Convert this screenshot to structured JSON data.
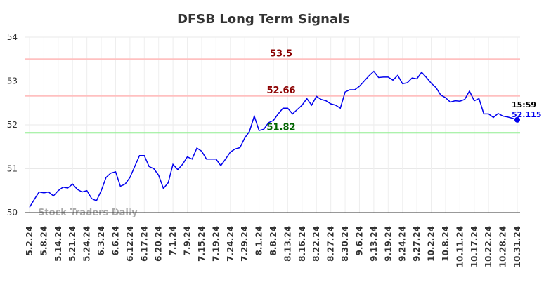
{
  "chart_data": {
    "type": "line",
    "title": "DFSB Long Term Signals",
    "watermark": "Stock Traders Daily",
    "last_time": "15:59",
    "categories": [
      "5.2.24",
      null,
      null,
      "5.8.24",
      null,
      null,
      "5.14.24",
      null,
      null,
      "5.21.24",
      null,
      null,
      "5.24.24",
      null,
      null,
      "6.3.24",
      null,
      null,
      "6.6.24",
      null,
      null,
      "6.12.24",
      null,
      null,
      "6.17.24",
      null,
      null,
      "6.20.24",
      null,
      null,
      "7.1.24",
      null,
      null,
      "7.9.24",
      null,
      null,
      "7.15.24",
      null,
      null,
      "7.19.24",
      null,
      null,
      "7.24.24",
      null,
      null,
      "7.29.24",
      null,
      null,
      "8.1.24",
      null,
      null,
      "8.8.24",
      null,
      null,
      "8.13.24",
      null,
      null,
      "8.16.24",
      null,
      null,
      "8.22.24",
      null,
      null,
      "8.27.24",
      null,
      null,
      "8.30.24",
      null,
      null,
      "9.6.24",
      null,
      null,
      "9.13.24",
      null,
      null,
      "9.19.24",
      null,
      null,
      "9.24.24",
      null,
      null,
      "9.27.24",
      null,
      null,
      "10.2.24",
      null,
      null,
      "10.8.24",
      null,
      null,
      "10.11.24",
      null,
      null,
      "10.17.24",
      null,
      null,
      "10.22.24",
      null,
      null,
      "10.28.24",
      null,
      null,
      "10.31.24"
    ],
    "series": [
      {
        "color": "#0000ee",
        "values": [
          50.12,
          50.3,
          50.47,
          50.45,
          50.47,
          50.38,
          50.5,
          50.58,
          50.56,
          50.65,
          50.53,
          50.47,
          50.5,
          50.32,
          50.27,
          50.5,
          50.8,
          50.9,
          50.93,
          50.6,
          50.65,
          50.8,
          51.05,
          51.3,
          51.3,
          51.05,
          51.0,
          50.85,
          50.55,
          50.68,
          51.1,
          50.98,
          51.1,
          51.27,
          51.22,
          51.47,
          51.4,
          51.22,
          51.22,
          51.22,
          51.07,
          51.22,
          51.38,
          51.45,
          51.48,
          51.7,
          51.85,
          52.2,
          51.87,
          51.9,
          52.05,
          52.1,
          52.25,
          52.38,
          52.38,
          52.25,
          52.35,
          52.45,
          52.6,
          52.45,
          52.65,
          52.58,
          52.55,
          52.48,
          52.45,
          52.38,
          52.75,
          52.8,
          52.8,
          52.88,
          53.0,
          53.12,
          53.22,
          53.08,
          53.09,
          53.09,
          53.02,
          53.13,
          52.94,
          52.96,
          53.07,
          53.05,
          53.2,
          53.08,
          52.95,
          52.85,
          52.68,
          52.62,
          52.52,
          52.55,
          52.54,
          52.58,
          52.77,
          52.55,
          52.6,
          52.25,
          52.25,
          52.17,
          52.26,
          52.2,
          52.18,
          52.15,
          52.115
        ]
      }
    ],
    "hlines": [
      {
        "value": 53.5,
        "color": "#ffc0c0",
        "label_color": "#8b0000"
      },
      {
        "value": 52.66,
        "color": "#ffc0c0",
        "label_color": "#8b0000"
      },
      {
        "value": 51.82,
        "color": "#90ee90",
        "label_color": "#006400"
      }
    ],
    "ylim": [
      50,
      54
    ],
    "yticks": [
      50,
      51,
      52,
      53,
      54
    ],
    "grid": true
  }
}
